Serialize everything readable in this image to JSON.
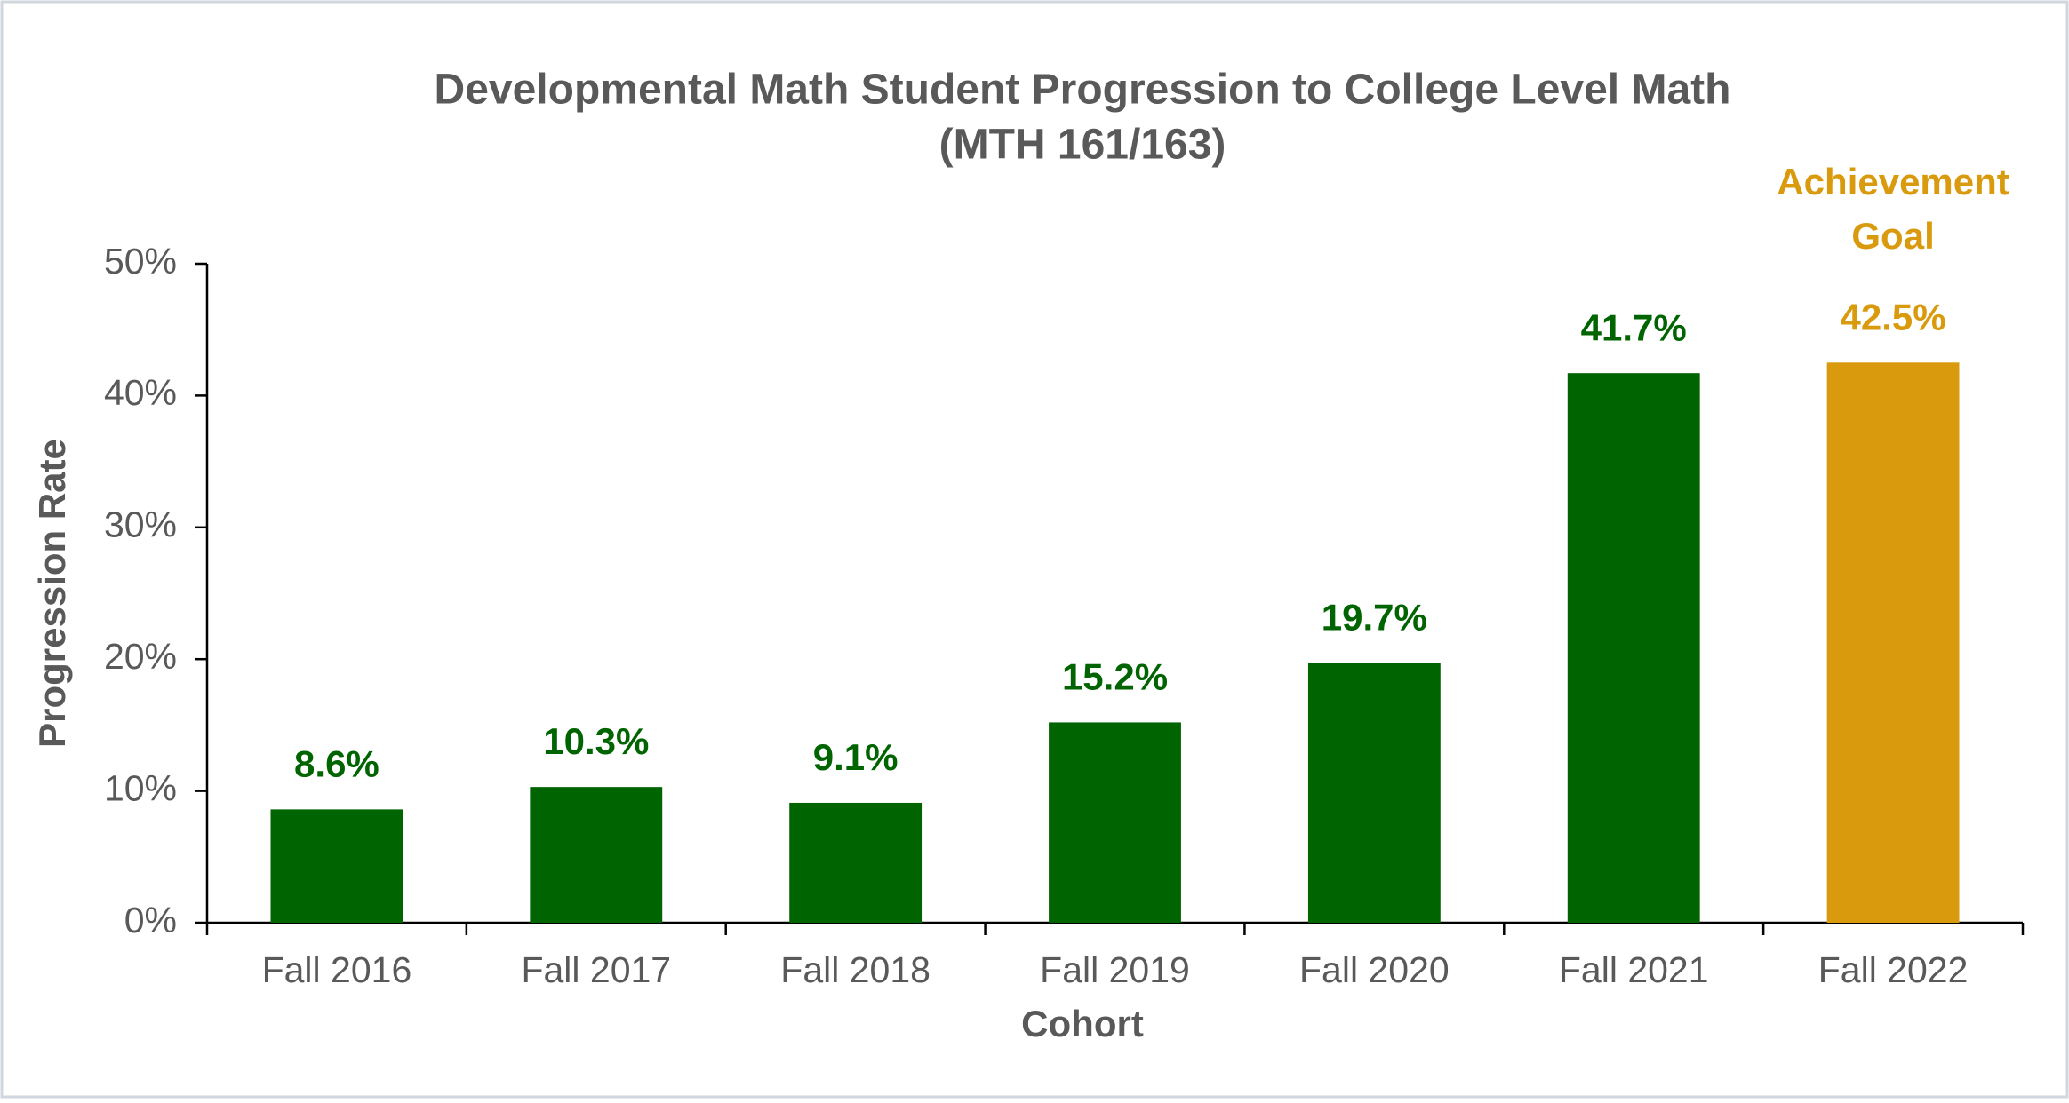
{
  "chart_data": {
    "type": "bar",
    "title": "Developmental Math Student Progression to College Level Math",
    "subtitle": "(MTH 161/163)",
    "x_label": "Cohort",
    "y_label": "Progression Rate",
    "annotation": "Achievement Goal",
    "categories": [
      "Fall 2016",
      "Fall 2017",
      "Fall 2018",
      "Fall 2019",
      "Fall 2020",
      "Fall 2021",
      "Fall 2022"
    ],
    "values": [
      8.6,
      10.3,
      9.1,
      15.2,
      19.7,
      41.7,
      42.5
    ],
    "value_labels": [
      "8.6%",
      "10.3%",
      "9.1%",
      "15.2%",
      "19.7%",
      "41.7%",
      "42.5%"
    ],
    "colors": [
      "#006400",
      "#006400",
      "#006400",
      "#006400",
      "#006400",
      "#006400",
      "#d99a0e"
    ],
    "ylim": [
      0,
      50
    ],
    "yticks": [
      {
        "value": 0,
        "label": "0%"
      },
      {
        "value": 10,
        "label": "10%"
      },
      {
        "value": 20,
        "label": "20%"
      },
      {
        "value": 30,
        "label": "30%"
      },
      {
        "value": 40,
        "label": "40%"
      },
      {
        "value": 50,
        "label": "50%"
      }
    ],
    "grid": false
  }
}
